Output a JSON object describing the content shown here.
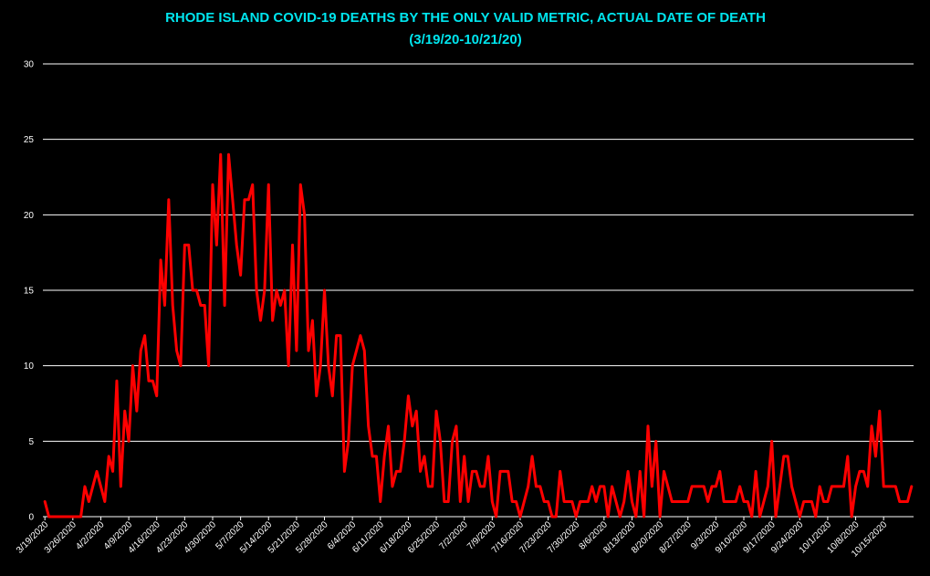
{
  "colors": {
    "background": "#000000",
    "title": "#00e5ee",
    "series": "#ff0000",
    "grid": "#ffffff",
    "text": "#ffffff"
  },
  "chart_data": {
    "type": "line",
    "title": "RHODE ISLAND COVID-19 DEATHS BY THE ONLY VALID METRIC, ACTUAL DATE OF DEATH",
    "subtitle": "(3/19/20-10/21/20)",
    "xlabel": "",
    "ylabel": "",
    "ylim": [
      0,
      30
    ],
    "yticks": [
      0,
      5,
      10,
      15,
      20,
      25,
      30
    ],
    "grid": true,
    "legend": "none",
    "x_start": "3/19/2020",
    "x_end": "10/21/2020",
    "x_tick_labels": [
      "3/19/2020",
      "3/26/2020",
      "4/2/2020",
      "4/9/2020",
      "4/16/2020",
      "4/23/2020",
      "4/30/2020",
      "5/7/2020",
      "5/14/2020",
      "5/21/2020",
      "5/28/2020",
      "6/4/2020",
      "6/11/2020",
      "6/18/2020",
      "6/25/2020",
      "7/2/2020",
      "7/9/2020",
      "7/16/2020",
      "7/23/2020",
      "7/30/2020",
      "8/6/2020",
      "8/13/2020",
      "8/20/2020",
      "8/27/2020",
      "9/3/2020",
      "9/10/2020",
      "9/17/2020",
      "9/24/2020",
      "10/1/2020",
      "10/8/2020",
      "10/15/2020"
    ],
    "series": [
      {
        "color": "#ff0000",
        "values": [
          1,
          0,
          0,
          0,
          0,
          0,
          0,
          0,
          0,
          0,
          2,
          1,
          2,
          3,
          2,
          1,
          4,
          3,
          9,
          2,
          7,
          5,
          10,
          7,
          11,
          12,
          9,
          9,
          8,
          17,
          14,
          21,
          14,
          11,
          10,
          18,
          18,
          15,
          15,
          14,
          14,
          10,
          22,
          18,
          24,
          14,
          24,
          21,
          18,
          16,
          21,
          21,
          22,
          15,
          13,
          15,
          22,
          13,
          15,
          14,
          15,
          10,
          18,
          11,
          22,
          20,
          11,
          13,
          8,
          10,
          15,
          10,
          8,
          12,
          12,
          3,
          5,
          10,
          11,
          12,
          11,
          6,
          4,
          4,
          1,
          4,
          6,
          2,
          3,
          3,
          5,
          8,
          6,
          7,
          3,
          4,
          2,
          2,
          7,
          5,
          1,
          1,
          5,
          6,
          1,
          4,
          1,
          3,
          3,
          2,
          2,
          4,
          1,
          0,
          3,
          3,
          3,
          1,
          1,
          0,
          1,
          2,
          4,
          2,
          2,
          1,
          1,
          0,
          0,
          3,
          1,
          1,
          1,
          0,
          1,
          1,
          1,
          2,
          1,
          2,
          2,
          0,
          2,
          1,
          0,
          1,
          3,
          1,
          0,
          3,
          0,
          6,
          2,
          5,
          0,
          3,
          2,
          1,
          1,
          1,
          1,
          1,
          2,
          2,
          2,
          2,
          1,
          2,
          2,
          3,
          1,
          1,
          1,
          1,
          2,
          1,
          1,
          0,
          3,
          0,
          1,
          2,
          5,
          0,
          2,
          4,
          4,
          2,
          1,
          0,
          1,
          1,
          1,
          0,
          2,
          1,
          1,
          2,
          2,
          2,
          2,
          4,
          0,
          2,
          3,
          3,
          2,
          6,
          4,
          7,
          2,
          2,
          2,
          2,
          1,
          1,
          1,
          2
        ]
      }
    ]
  }
}
